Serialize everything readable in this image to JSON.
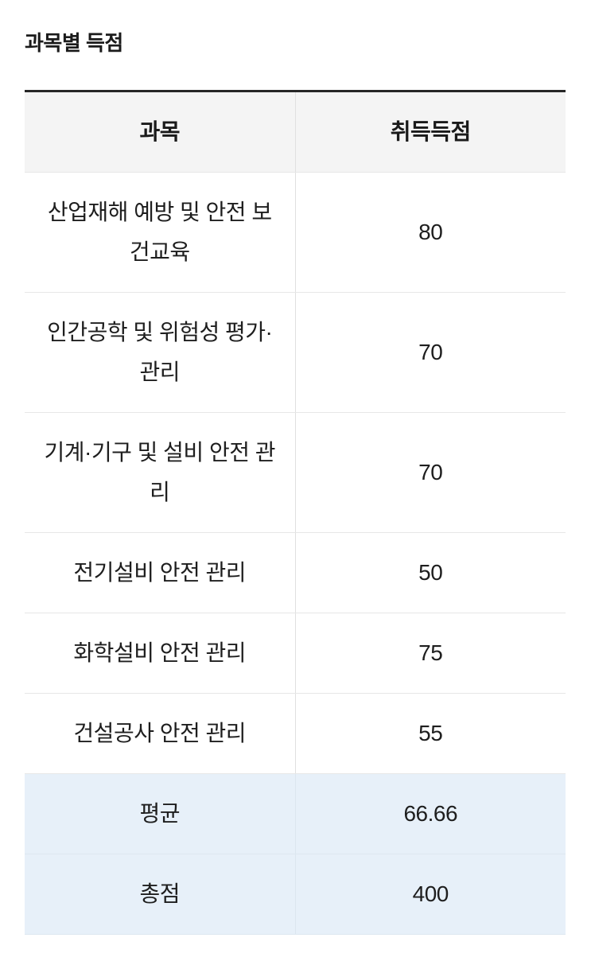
{
  "page": {
    "title": "과목별 득점"
  },
  "table": {
    "columns": {
      "subject": "과목",
      "score": "취득득점"
    },
    "rows": [
      {
        "subject": "산업재해 예방 및 안전 보건교육",
        "score": "80"
      },
      {
        "subject": "인간공학 및 위험성 평가·관리",
        "score": "70"
      },
      {
        "subject": "기계·기구 및 설비 안전 관리",
        "score": "70"
      },
      {
        "subject": "전기설비 안전 관리",
        "score": "50"
      },
      {
        "subject": "화학설비 안전 관리",
        "score": "75"
      },
      {
        "subject": "건설공사 안전 관리",
        "score": "55"
      }
    ],
    "summary_rows": [
      {
        "subject": "평균",
        "score": "66.66"
      },
      {
        "subject": "총점",
        "score": "400"
      }
    ]
  },
  "chart_data": {
    "type": "table",
    "title": "과목별 득점",
    "categories": [
      "산업재해 예방 및 안전 보건교육",
      "인간공학 및 위험성 평가·관리",
      "기계·기구 및 설비 안전 관리",
      "전기설비 안전 관리",
      "화학설비 안전 관리",
      "건설공사 안전 관리"
    ],
    "values": [
      80,
      70,
      70,
      50,
      75,
      55
    ],
    "average": 66.66,
    "total": 400
  },
  "colors": {
    "top_border": "#262626",
    "header_bg": "#f4f4f4",
    "summary_bg": "#e7f0f9",
    "row_divider": "#e7e7e7",
    "column_divider": "#e0e0e0",
    "text": "#1e1e1e"
  }
}
